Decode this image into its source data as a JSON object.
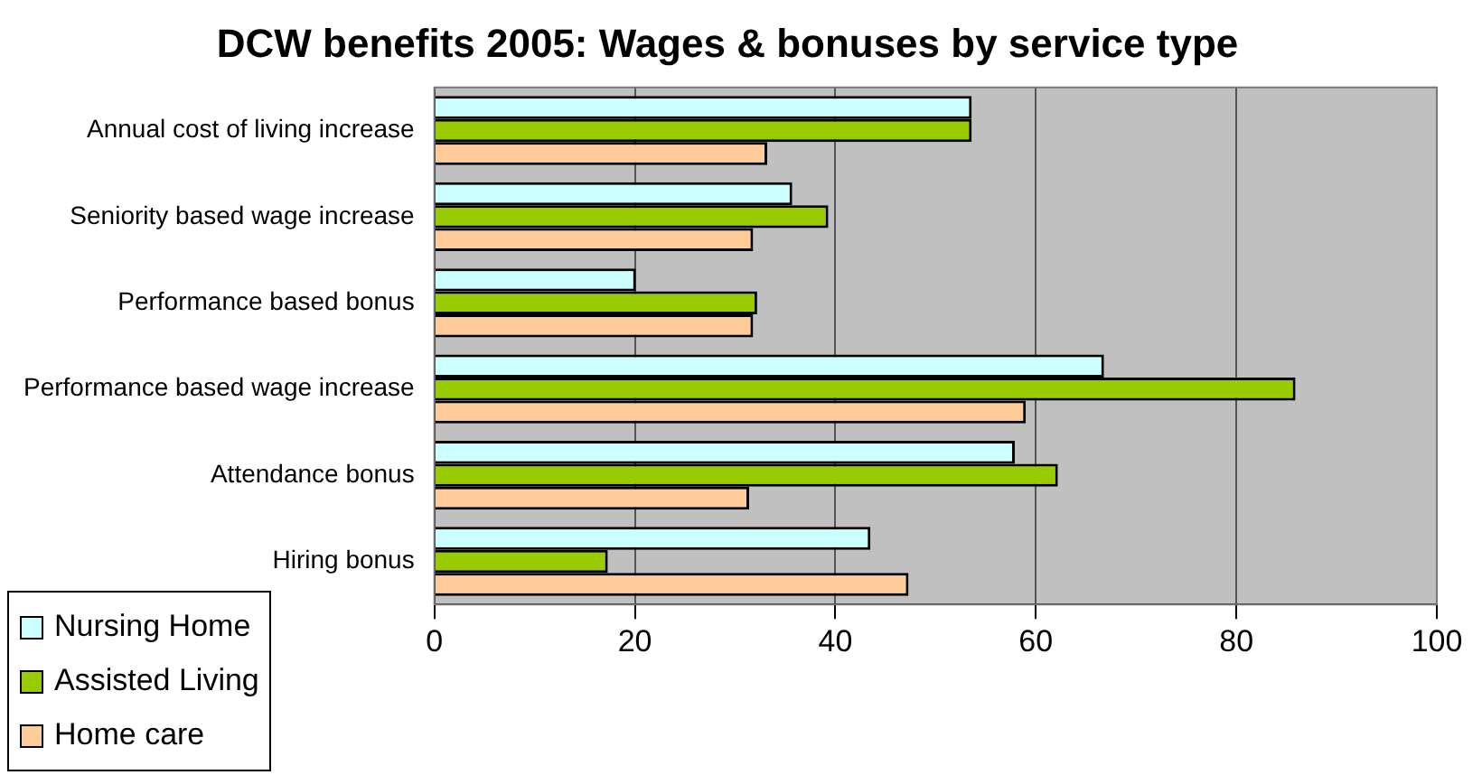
{
  "chart_data": {
    "type": "bar",
    "orientation": "horizontal",
    "title": "DCW benefits 2005: Wages & bonuses by service type",
    "categories": [
      "Annual cost of living increase",
      "Seniority based wage increase",
      "Performance based bonus",
      "Performance based wage increase",
      "Attendance bonus",
      "Hiring bonus"
    ],
    "series": [
      {
        "name": "Nursing Home",
        "color": "#ccffff",
        "values": [
          53.6,
          35.7,
          20.1,
          66.8,
          57.9,
          43.5
        ]
      },
      {
        "name": "Assisted Living",
        "color": "#99cc00",
        "values": [
          53.6,
          39.3,
          32.2,
          85.9,
          62.2,
          17.3
        ]
      },
      {
        "name": "Home care",
        "color": "#ffcc99",
        "values": [
          33.2,
          31.8,
          31.8,
          59.0,
          31.4,
          47.3
        ]
      }
    ],
    "xlim": [
      0,
      100
    ],
    "xticks": [
      0,
      20,
      40,
      60,
      80,
      100
    ],
    "grid": "x",
    "legend": "bottom left"
  }
}
